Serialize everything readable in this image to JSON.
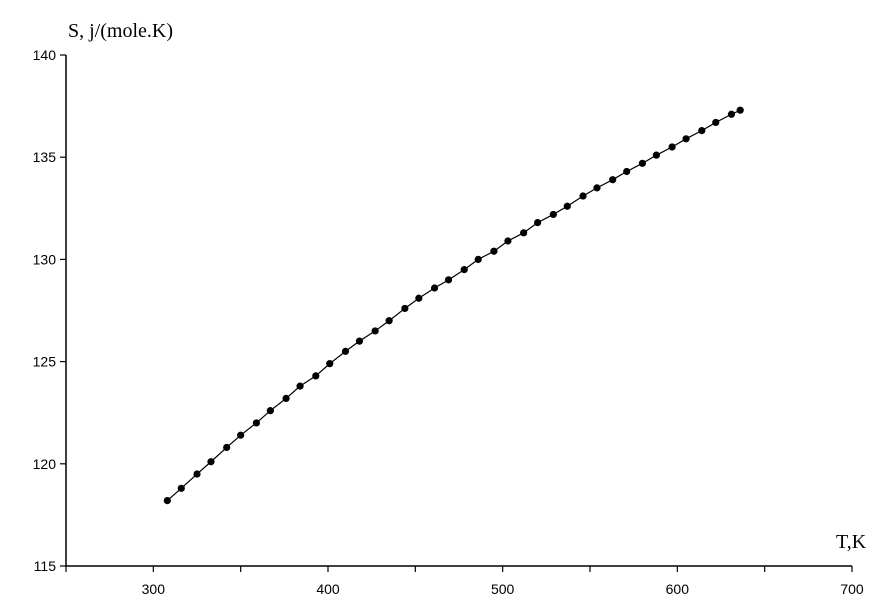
{
  "chart_data": {
    "type": "line",
    "ylabel": "S, j/(mole.K)",
    "xlabel": "T,K",
    "xlim": [
      250,
      700
    ],
    "ylim": [
      115,
      140
    ],
    "xticks": [
      300,
      400,
      500,
      600,
      700
    ],
    "yticks": [
      115,
      120,
      125,
      130,
      135,
      140
    ],
    "grid": false,
    "series": [
      {
        "color": "#000000",
        "marker": "circle",
        "x": [
          308,
          316,
          325,
          333,
          342,
          350,
          359,
          367,
          376,
          384,
          393,
          401,
          410,
          418,
          427,
          435,
          444,
          452,
          461,
          469,
          478,
          486,
          495,
          503,
          512,
          520,
          529,
          537,
          546,
          554,
          563,
          571,
          580,
          588,
          597,
          605,
          614,
          622,
          631,
          636
        ],
        "y": [
          118.2,
          118.8,
          119.5,
          120.1,
          120.8,
          121.4,
          122.0,
          122.6,
          123.2,
          123.8,
          124.3,
          124.9,
          125.5,
          126.0,
          126.5,
          127.0,
          127.6,
          128.1,
          128.6,
          129.0,
          129.5,
          130.0,
          130.4,
          130.9,
          131.3,
          131.8,
          132.2,
          132.6,
          133.1,
          133.5,
          133.9,
          134.3,
          134.7,
          135.1,
          135.5,
          135.9,
          136.3,
          136.7,
          137.1,
          137.3
        ]
      }
    ]
  }
}
